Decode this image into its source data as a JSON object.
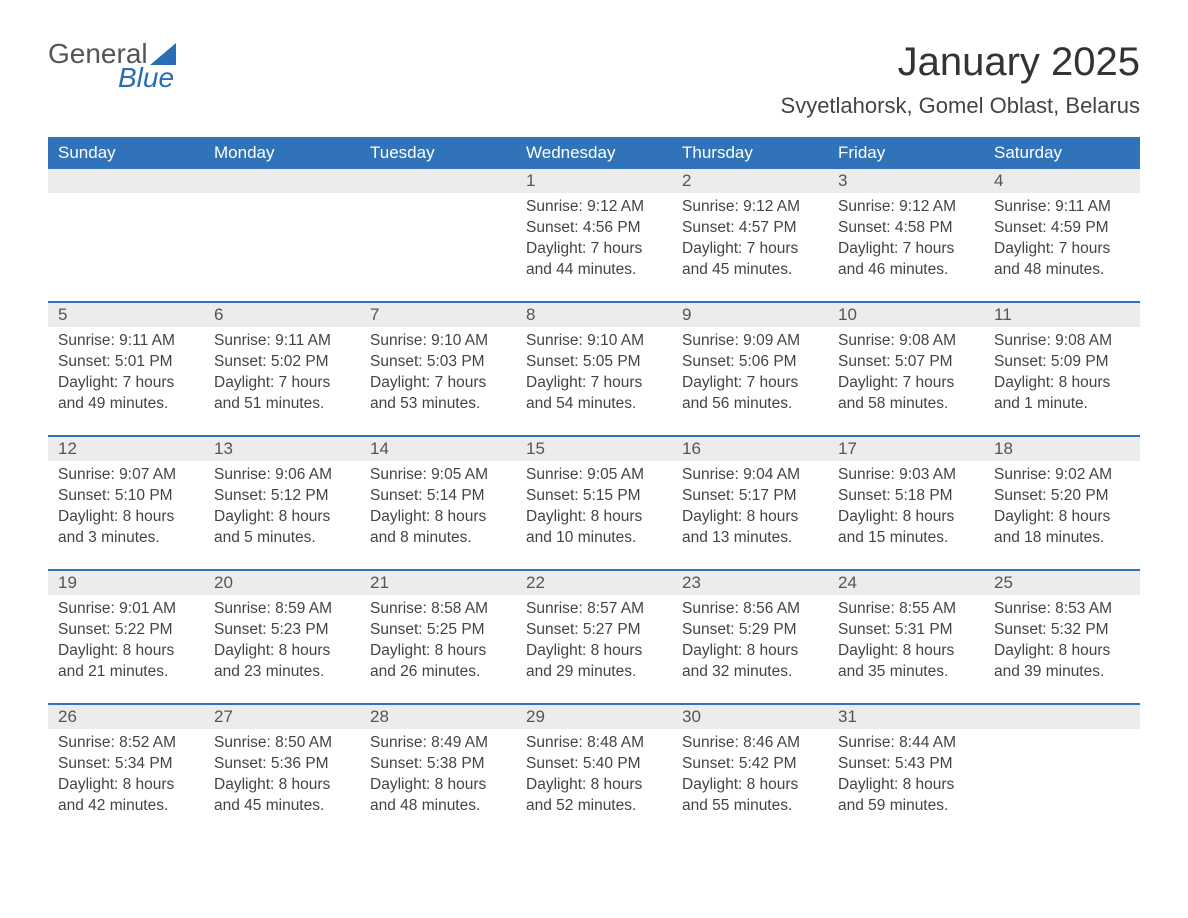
{
  "logo": {
    "word1": "General",
    "word2": "Blue"
  },
  "title": "January 2025",
  "subtitle": "Svyetlahorsk, Gomel Oblast, Belarus",
  "colors": {
    "header_bg": "#3173b8",
    "header_text": "#ffffff",
    "daynum_bg": "#ececec",
    "week_border": "#3173b8",
    "body_text": "#444444",
    "logo_gray": "#555555",
    "logo_blue": "#2a6db5",
    "page_bg": "#ffffff"
  },
  "day_names": [
    "Sunday",
    "Monday",
    "Tuesday",
    "Wednesday",
    "Thursday",
    "Friday",
    "Saturday"
  ],
  "weeks": [
    [
      {
        "n": "",
        "sr": "",
        "ss": "",
        "dl": ""
      },
      {
        "n": "",
        "sr": "",
        "ss": "",
        "dl": ""
      },
      {
        "n": "",
        "sr": "",
        "ss": "",
        "dl": ""
      },
      {
        "n": "1",
        "sr": "Sunrise: 9:12 AM",
        "ss": "Sunset: 4:56 PM",
        "dl": "Daylight: 7 hours and 44 minutes."
      },
      {
        "n": "2",
        "sr": "Sunrise: 9:12 AM",
        "ss": "Sunset: 4:57 PM",
        "dl": "Daylight: 7 hours and 45 minutes."
      },
      {
        "n": "3",
        "sr": "Sunrise: 9:12 AM",
        "ss": "Sunset: 4:58 PM",
        "dl": "Daylight: 7 hours and 46 minutes."
      },
      {
        "n": "4",
        "sr": "Sunrise: 9:11 AM",
        "ss": "Sunset: 4:59 PM",
        "dl": "Daylight: 7 hours and 48 minutes."
      }
    ],
    [
      {
        "n": "5",
        "sr": "Sunrise: 9:11 AM",
        "ss": "Sunset: 5:01 PM",
        "dl": "Daylight: 7 hours and 49 minutes."
      },
      {
        "n": "6",
        "sr": "Sunrise: 9:11 AM",
        "ss": "Sunset: 5:02 PM",
        "dl": "Daylight: 7 hours and 51 minutes."
      },
      {
        "n": "7",
        "sr": "Sunrise: 9:10 AM",
        "ss": "Sunset: 5:03 PM",
        "dl": "Daylight: 7 hours and 53 minutes."
      },
      {
        "n": "8",
        "sr": "Sunrise: 9:10 AM",
        "ss": "Sunset: 5:05 PM",
        "dl": "Daylight: 7 hours and 54 minutes."
      },
      {
        "n": "9",
        "sr": "Sunrise: 9:09 AM",
        "ss": "Sunset: 5:06 PM",
        "dl": "Daylight: 7 hours and 56 minutes."
      },
      {
        "n": "10",
        "sr": "Sunrise: 9:08 AM",
        "ss": "Sunset: 5:07 PM",
        "dl": "Daylight: 7 hours and 58 minutes."
      },
      {
        "n": "11",
        "sr": "Sunrise: 9:08 AM",
        "ss": "Sunset: 5:09 PM",
        "dl": "Daylight: 8 hours and 1 minute."
      }
    ],
    [
      {
        "n": "12",
        "sr": "Sunrise: 9:07 AM",
        "ss": "Sunset: 5:10 PM",
        "dl": "Daylight: 8 hours and 3 minutes."
      },
      {
        "n": "13",
        "sr": "Sunrise: 9:06 AM",
        "ss": "Sunset: 5:12 PM",
        "dl": "Daylight: 8 hours and 5 minutes."
      },
      {
        "n": "14",
        "sr": "Sunrise: 9:05 AM",
        "ss": "Sunset: 5:14 PM",
        "dl": "Daylight: 8 hours and 8 minutes."
      },
      {
        "n": "15",
        "sr": "Sunrise: 9:05 AM",
        "ss": "Sunset: 5:15 PM",
        "dl": "Daylight: 8 hours and 10 minutes."
      },
      {
        "n": "16",
        "sr": "Sunrise: 9:04 AM",
        "ss": "Sunset: 5:17 PM",
        "dl": "Daylight: 8 hours and 13 minutes."
      },
      {
        "n": "17",
        "sr": "Sunrise: 9:03 AM",
        "ss": "Sunset: 5:18 PM",
        "dl": "Daylight: 8 hours and 15 minutes."
      },
      {
        "n": "18",
        "sr": "Sunrise: 9:02 AM",
        "ss": "Sunset: 5:20 PM",
        "dl": "Daylight: 8 hours and 18 minutes."
      }
    ],
    [
      {
        "n": "19",
        "sr": "Sunrise: 9:01 AM",
        "ss": "Sunset: 5:22 PM",
        "dl": "Daylight: 8 hours and 21 minutes."
      },
      {
        "n": "20",
        "sr": "Sunrise: 8:59 AM",
        "ss": "Sunset: 5:23 PM",
        "dl": "Daylight: 8 hours and 23 minutes."
      },
      {
        "n": "21",
        "sr": "Sunrise: 8:58 AM",
        "ss": "Sunset: 5:25 PM",
        "dl": "Daylight: 8 hours and 26 minutes."
      },
      {
        "n": "22",
        "sr": "Sunrise: 8:57 AM",
        "ss": "Sunset: 5:27 PM",
        "dl": "Daylight: 8 hours and 29 minutes."
      },
      {
        "n": "23",
        "sr": "Sunrise: 8:56 AM",
        "ss": "Sunset: 5:29 PM",
        "dl": "Daylight: 8 hours and 32 minutes."
      },
      {
        "n": "24",
        "sr": "Sunrise: 8:55 AM",
        "ss": "Sunset: 5:31 PM",
        "dl": "Daylight: 8 hours and 35 minutes."
      },
      {
        "n": "25",
        "sr": "Sunrise: 8:53 AM",
        "ss": "Sunset: 5:32 PM",
        "dl": "Daylight: 8 hours and 39 minutes."
      }
    ],
    [
      {
        "n": "26",
        "sr": "Sunrise: 8:52 AM",
        "ss": "Sunset: 5:34 PM",
        "dl": "Daylight: 8 hours and 42 minutes."
      },
      {
        "n": "27",
        "sr": "Sunrise: 8:50 AM",
        "ss": "Sunset: 5:36 PM",
        "dl": "Daylight: 8 hours and 45 minutes."
      },
      {
        "n": "28",
        "sr": "Sunrise: 8:49 AM",
        "ss": "Sunset: 5:38 PM",
        "dl": "Daylight: 8 hours and 48 minutes."
      },
      {
        "n": "29",
        "sr": "Sunrise: 8:48 AM",
        "ss": "Sunset: 5:40 PM",
        "dl": "Daylight: 8 hours and 52 minutes."
      },
      {
        "n": "30",
        "sr": "Sunrise: 8:46 AM",
        "ss": "Sunset: 5:42 PM",
        "dl": "Daylight: 8 hours and 55 minutes."
      },
      {
        "n": "31",
        "sr": "Sunrise: 8:44 AM",
        "ss": "Sunset: 5:43 PM",
        "dl": "Daylight: 8 hours and 59 minutes."
      },
      {
        "n": "",
        "sr": "",
        "ss": "",
        "dl": ""
      }
    ]
  ]
}
